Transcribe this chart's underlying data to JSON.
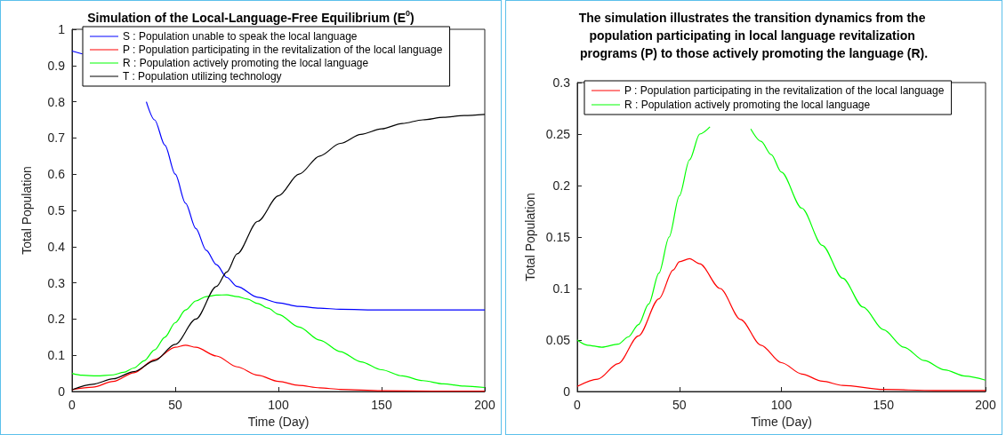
{
  "chart_data": [
    {
      "type": "line",
      "title": "Simulation of the Local-Language-Free Equilibrium (E$^{0}$)",
      "xlabel": "Time (Day)",
      "ylabel": "Total Population",
      "xlim": [
        0,
        200
      ],
      "xticks": [
        0,
        50,
        100,
        150,
        200
      ],
      "ylim": [
        0,
        1
      ],
      "yticks": [
        0,
        0.1,
        0.2,
        0.3,
        0.4,
        0.5,
        0.6,
        0.7,
        0.8,
        0.9,
        1
      ],
      "grid": false,
      "legend": "top",
      "marker": "none",
      "line_style": "solid",
      "series": [
        {
          "name": "S : Population unable to speak the local language",
          "color": "#0000ff",
          "x": [
            0,
            5,
            10,
            36,
            40,
            45,
            50,
            55,
            60,
            65,
            70,
            75,
            80,
            90,
            100,
            110,
            120,
            130,
            150,
            175,
            200
          ],
          "values": [
            0.94,
            0.932,
            null,
            0.8,
            0.75,
            0.68,
            0.6,
            0.52,
            0.45,
            0.39,
            0.35,
            0.315,
            0.29,
            0.26,
            0.245,
            0.235,
            0.23,
            0.227,
            0.225,
            0.225,
            0.225
          ]
        },
        {
          "name": "P : Population participating in the revitalization of the local language",
          "color": "#ff0000",
          "x": [
            0,
            10,
            20,
            30,
            40,
            50,
            55,
            60,
            70,
            80,
            90,
            100,
            110,
            120,
            130,
            150,
            175,
            200
          ],
          "values": [
            0.005,
            0.012,
            0.028,
            0.052,
            0.088,
            0.122,
            0.128,
            0.122,
            0.098,
            0.068,
            0.045,
            0.028,
            0.017,
            0.01,
            0.006,
            0.002,
            0.001,
            0.001
          ]
        },
        {
          "name": "R : Population actively promoting the local language",
          "color": "#00ff00",
          "x": [
            0,
            5,
            12,
            20,
            25,
            30,
            35,
            40,
            45,
            50,
            55,
            60,
            65,
            70,
            75,
            80,
            85,
            90,
            95,
            100,
            110,
            120,
            130,
            140,
            150,
            160,
            170,
            180,
            190,
            200
          ],
          "values": [
            0.05,
            0.045,
            0.043,
            0.046,
            0.053,
            0.065,
            0.085,
            0.115,
            0.15,
            0.19,
            0.225,
            0.25,
            0.262,
            0.266,
            0.267,
            0.262,
            0.255,
            0.243,
            0.23,
            0.213,
            0.178,
            0.142,
            0.11,
            0.082,
            0.06,
            0.043,
            0.03,
            0.021,
            0.015,
            0.011
          ]
        },
        {
          "name": "T : Population utilizing technology",
          "color": "#000000",
          "x": [
            0,
            10,
            20,
            30,
            40,
            50,
            60,
            70,
            75,
            80,
            90,
            100,
            110,
            120,
            130,
            140,
            150,
            160,
            170,
            180,
            190,
            200
          ],
          "values": [
            0.005,
            0.02,
            0.035,
            0.055,
            0.085,
            0.13,
            0.2,
            0.29,
            0.33,
            0.38,
            0.47,
            0.54,
            0.6,
            0.65,
            0.685,
            0.71,
            0.725,
            0.74,
            0.75,
            0.757,
            0.762,
            0.765
          ]
        }
      ]
    },
    {
      "type": "line",
      "title": "The simulation illustrates the transition dynamics from the population participating in local language revitalization programs (P) to those actively promoting the language (R).",
      "xlabel": "Time (Day)",
      "ylabel": "Total Population",
      "xlim": [
        0,
        200
      ],
      "xticks": [
        0,
        50,
        100,
        150,
        200
      ],
      "ylim": [
        0,
        0.3
      ],
      "yticks": [
        0,
        0.05,
        0.1,
        0.15,
        0.2,
        0.25,
        0.3
      ],
      "grid": false,
      "legend": "top",
      "marker": "none",
      "line_style": "solid",
      "series": [
        {
          "name": "P : Population participating in the revitalization of the local language",
          "color": "#ff0000",
          "x": [
            0,
            10,
            20,
            30,
            40,
            47,
            50,
            55,
            60,
            70,
            80,
            90,
            100,
            110,
            120,
            130,
            150,
            175,
            200
          ],
          "values": [
            0.005,
            0.012,
            0.027,
            0.054,
            0.09,
            0.118,
            0.126,
            0.129,
            0.124,
            0.1,
            0.07,
            0.045,
            0.028,
            0.017,
            0.01,
            0.006,
            0.002,
            0.001,
            0.001
          ]
        },
        {
          "name": "R : Population actively promoting the local language",
          "color": "#00ff00",
          "x": [
            0,
            5,
            12,
            20,
            25,
            30,
            35,
            40,
            45,
            50,
            55,
            60,
            65,
            70,
            85,
            90,
            95,
            100,
            110,
            120,
            130,
            140,
            150,
            160,
            170,
            180,
            190,
            200
          ],
          "values": [
            0.05,
            0.045,
            0.043,
            0.046,
            0.053,
            0.065,
            0.085,
            0.115,
            0.15,
            0.19,
            0.225,
            0.25,
            0.257,
            null,
            0.255,
            0.243,
            0.23,
            0.213,
            0.178,
            0.142,
            0.11,
            0.082,
            0.06,
            0.043,
            0.03,
            0.021,
            0.015,
            0.011
          ]
        }
      ]
    }
  ]
}
